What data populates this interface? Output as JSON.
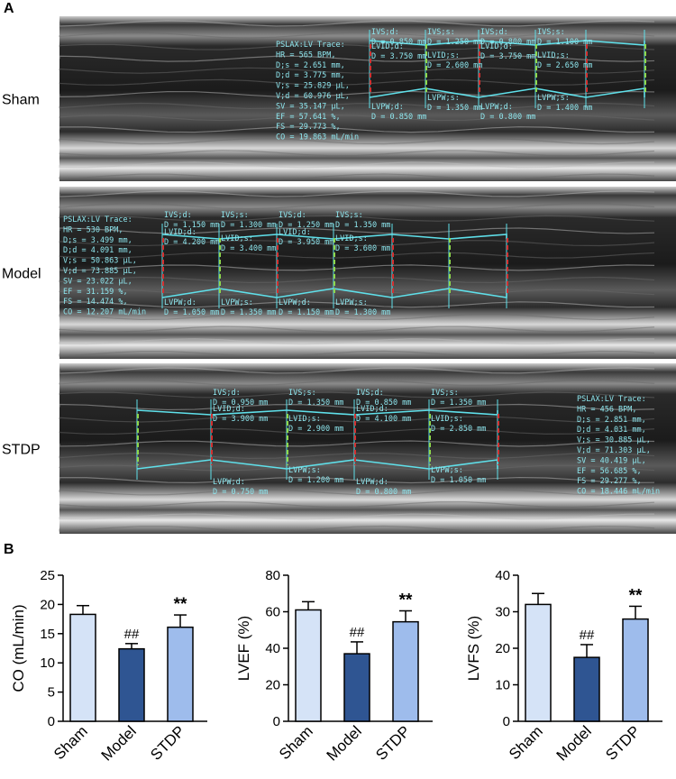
{
  "panel_labels": [
    "A",
    "B"
  ],
  "echo_panels": [
    {
      "label": "Sham",
      "trace": [
        "PSLAX:LV Trace:",
        "HR = 565 BPM,",
        "D;s = 2.651 mm,",
        "D;d = 3.775 mm,",
        "V;s = 25.829 µL,",
        "V;d = 60.976 µL,",
        "SV = 35.147 µL,",
        "EF = 57.641 %,",
        "FS = 29.773 %,",
        "CO = 19.863 mL/min"
      ],
      "measurements": [
        [
          "IVS;d:",
          "D = 0.850 mm"
        ],
        [
          "IVS;s:",
          "D = 1.250 mm"
        ],
        [
          "IVS;d:",
          "D = 0.800 mm"
        ],
        [
          "IVS;s:",
          "D = 1.100 mm"
        ],
        [
          "LVID;d:",
          "D = 3.750 mm"
        ],
        [
          "LVID;s:",
          "D = 2.600 mm"
        ],
        [
          "LVID;d:",
          "D = 3.750 mm"
        ],
        [
          "LVID;s:",
          "D = 2.650 mm"
        ],
        [
          "LVPW;d:",
          "D = 0.850 mm"
        ],
        [
          "LVPW;s:",
          "D = 1.350 mm"
        ],
        [
          "LVPW;d:",
          "D = 0.800 mm"
        ],
        [
          "LVPW;s:",
          "D = 1.400 mm"
        ]
      ]
    },
    {
      "label": "Model",
      "trace": [
        "PSLAX:LV Trace:",
        "HR = 530 BPM,",
        "D;s = 3.499 mm,",
        "D;d = 4.091 mm,",
        "V;s = 50.863 µL,",
        "V;d = 73.885 µL,",
        "SV = 23.022 µL,",
        "EF = 31.159 %,",
        "FS = 14.474 %,",
        "CO = 12.207 mL/min"
      ],
      "measurements": [
        [
          "IVS;d:",
          "D = 1.150 mm"
        ],
        [
          "IVS;s:",
          "D = 1.300 mm"
        ],
        [
          "IVS;d:",
          "D = 1.250 mm"
        ],
        [
          "IVS;s:",
          "D = 1.350 mm"
        ],
        [
          "LVID;d:",
          "D = 4.200 mm"
        ],
        [
          "LVID;s:",
          "D = 3.400 mm"
        ],
        [
          "LVID;d:",
          "D = 3.950 mm"
        ],
        [
          "LVID;s:",
          "D = 3.600 mm"
        ],
        [
          "LVPW;d:",
          "D = 1.050 mm"
        ],
        [
          "LVPW;s:",
          "D = 1.350 mm"
        ],
        [
          "LVPW;d:",
          "D = 1.150 mm"
        ],
        [
          "LVPW;s:",
          "D = 1.300 mm"
        ]
      ]
    },
    {
      "label": "STDP",
      "trace": [
        "PSLAX:LV Trace:",
        "HR = 456 BPM,",
        "D;s = 2.851 mm,",
        "D;d = 4.031 mm,",
        "V;s = 30.885 µL,",
        "V;d = 71.303 µL,",
        "SV = 40.419 µL,",
        "EF = 56.685 %,",
        "FS = 29.277 %,",
        "CO = 18.446 mL/min"
      ],
      "measurements": [
        [
          "IVS;d:",
          "D = 0.950 mm"
        ],
        [
          "IVS;s:",
          "D = 1.350 mm"
        ],
        [
          "IVS;d:",
          "D = 0.850 mm"
        ],
        [
          "IVS;s:",
          "D = 1.350 mm"
        ],
        [
          "LVID;d:",
          "D = 3.900 mm"
        ],
        [
          "LVID;s:",
          "D = 2.900 mm"
        ],
        [
          "LVID;d:",
          "D = 4.100 mm"
        ],
        [
          "LVID;s:",
          "D = 2.850 mm"
        ],
        [
          "LVPW;d:",
          "D = 0.750 mm"
        ],
        [
          "LVPW;s:",
          "D = 1.200 mm"
        ],
        [
          "LVPW;d:",
          "D = 0.800 mm"
        ],
        [
          "LVPW;s:",
          "D = 1.050 mm"
        ]
      ]
    }
  ],
  "chart_data": [
    {
      "type": "bar",
      "y_label": "CO (mL/min)",
      "categories": [
        "Sham",
        "Model",
        "STDP"
      ],
      "values": [
        18.3,
        12.4,
        16.1
      ],
      "errors": [
        1.5,
        0.9,
        2.1
      ],
      "value_annotations": [
        null,
        "##",
        "**"
      ],
      "colors": [
        "#d5e3f7",
        "#2f5592",
        "#9ebcec"
      ],
      "ylim": [
        0,
        25
      ],
      "yticks": [
        0,
        5,
        10,
        15,
        20,
        25
      ]
    },
    {
      "type": "bar",
      "y_label": "LVEF (%)",
      "categories": [
        "Sham",
        "Model",
        "STDP"
      ],
      "values": [
        61,
        37,
        54.5
      ],
      "errors": [
        4.5,
        6.5,
        6
      ],
      "value_annotations": [
        null,
        "##",
        "**"
      ],
      "colors": [
        "#d5e3f7",
        "#2f5592",
        "#9ebcec"
      ],
      "ylim": [
        0,
        80
      ],
      "yticks": [
        0,
        20,
        40,
        60,
        80
      ]
    },
    {
      "type": "bar",
      "y_label": "LVFS (%)",
      "categories": [
        "Sham",
        "Model",
        "STDP"
      ],
      "values": [
        32,
        17.5,
        28
      ],
      "errors": [
        3,
        3.5,
        3.5
      ],
      "value_annotations": [
        null,
        "##",
        "**"
      ],
      "colors": [
        "#d5e3f7",
        "#2f5592",
        "#9ebcec"
      ],
      "ylim": [
        0,
        40
      ],
      "yticks": [
        0,
        10,
        20,
        30,
        40
      ]
    }
  ]
}
